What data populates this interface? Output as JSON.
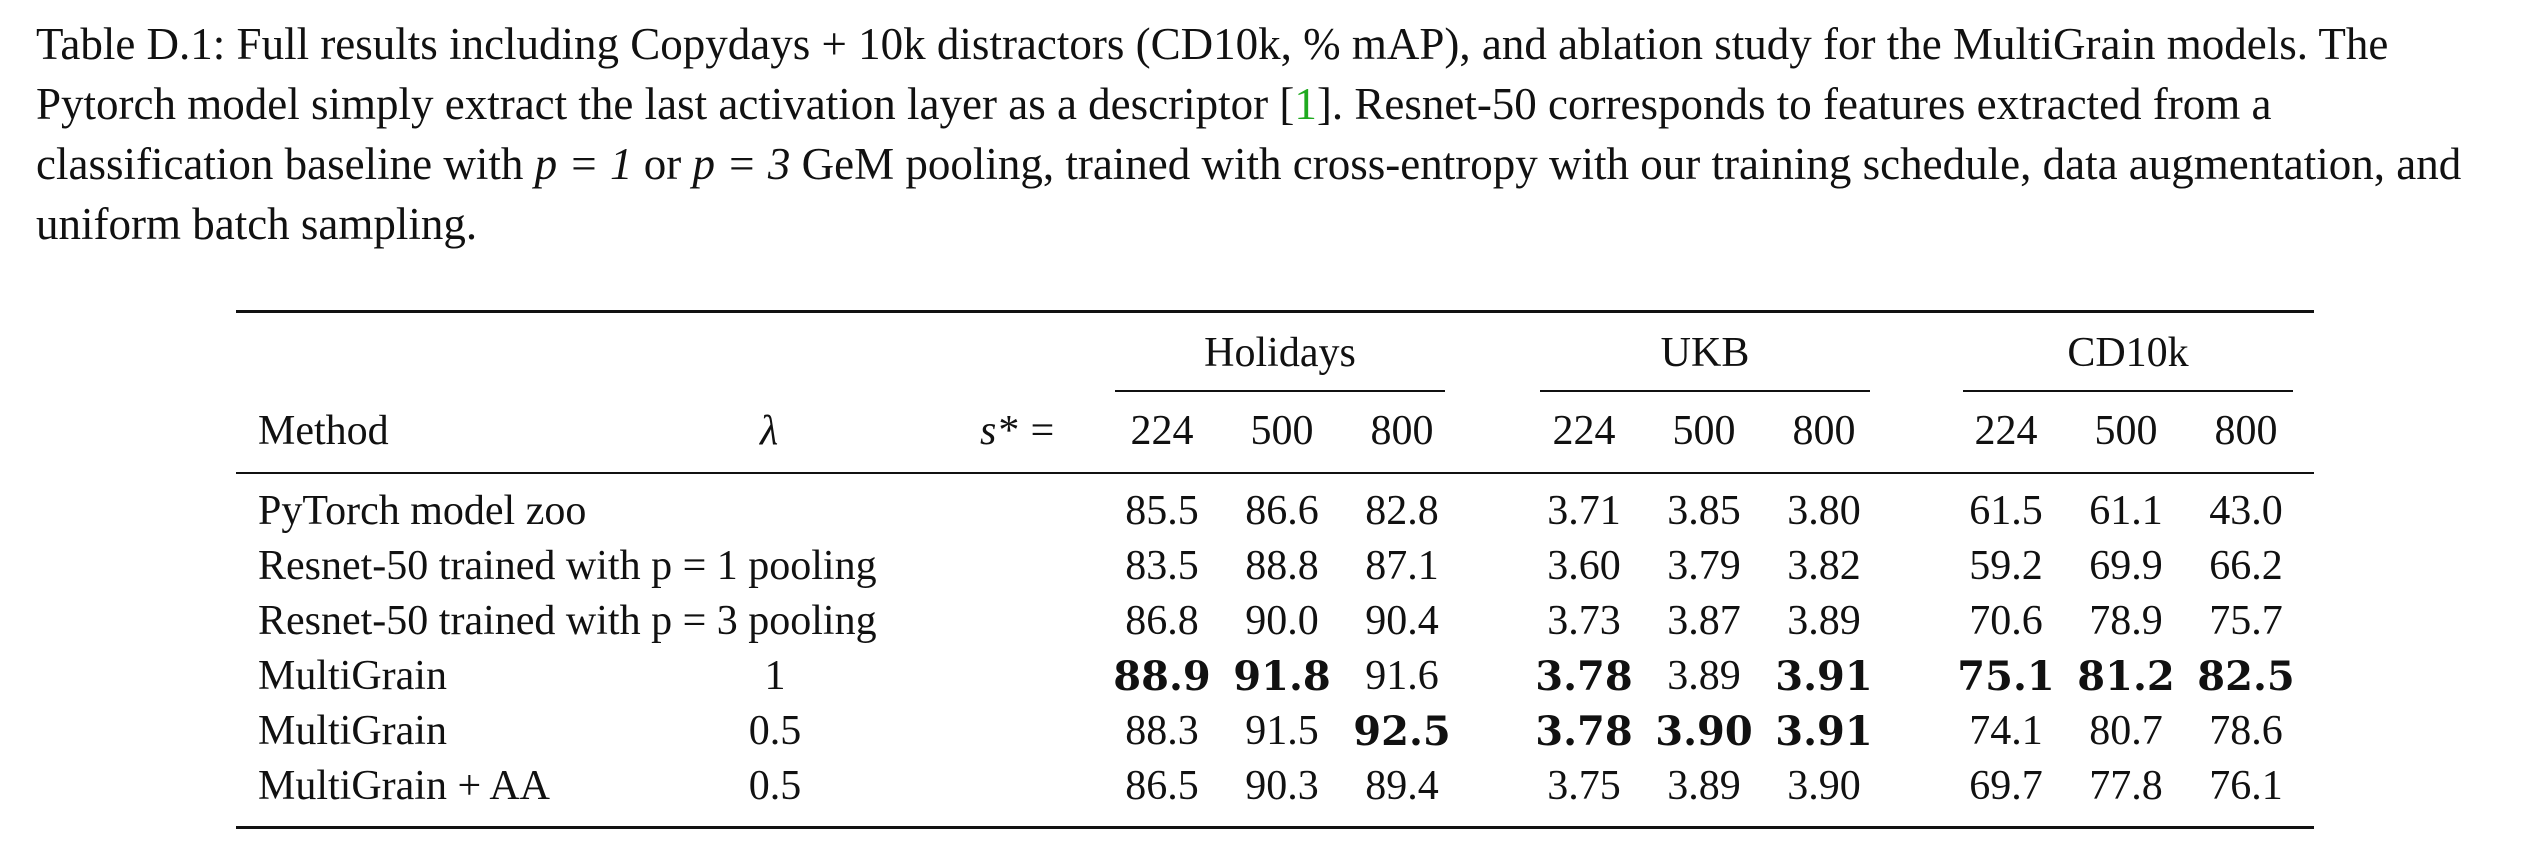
{
  "caption": {
    "part1": "Table D.1:  Full results including Copydays + 10k distractors (CD10k, % mAP), and ablation study for the MultiGrain models. The Pytorch model simply extract the last activation layer as a descriptor [",
    "ref": "1",
    "part2": "]. Resnet-50 corresponds to features extracted from a classification baseline with ",
    "p1": "p = 1",
    "or": " or ",
    "p3": "p = 3",
    "part3": " GeM pooling, trained with cross-entropy with our training schedule, data augmentation, and uniform batch sampling."
  },
  "table": {
    "groups": [
      "Holidays",
      "UKB",
      "CD10k"
    ],
    "method_header": "Method",
    "lambda_header": "λ",
    "s_header": "s* =",
    "sizes": [
      "224",
      "500",
      "800"
    ],
    "rows": [
      {
        "method": "PyTorch model zoo",
        "lambda": "",
        "values": [
          "85.5",
          "86.6",
          "82.8",
          "3.71",
          "3.85",
          "3.80",
          "61.5",
          "61.1",
          "43.0"
        ],
        "bold": [
          false,
          false,
          false,
          false,
          false,
          false,
          false,
          false,
          false
        ]
      },
      {
        "method": "Resnet-50 trained with p = 1 pooling",
        "lambda": "",
        "values": [
          "83.5",
          "88.8",
          "87.1",
          "3.60",
          "3.79",
          "3.82",
          "59.2",
          "69.9",
          "66.2"
        ],
        "bold": [
          false,
          false,
          false,
          false,
          false,
          false,
          false,
          false,
          false
        ]
      },
      {
        "method": "Resnet-50 trained with p = 3 pooling",
        "lambda": "",
        "values": [
          "86.8",
          "90.0",
          "90.4",
          "3.73",
          "3.87",
          "3.89",
          "70.6",
          "78.9",
          "75.7"
        ],
        "bold": [
          false,
          false,
          false,
          false,
          false,
          false,
          false,
          false,
          false
        ]
      },
      {
        "method": "MultiGrain",
        "lambda": "1",
        "values": [
          "88.9",
          "91.8",
          "91.6",
          "3.78",
          "3.89",
          "3.91",
          "75.1",
          "81.2",
          "82.5"
        ],
        "bold": [
          true,
          true,
          false,
          true,
          false,
          true,
          true,
          true,
          true
        ]
      },
      {
        "method": "MultiGrain",
        "lambda": "0.5",
        "values": [
          "88.3",
          "91.5",
          "92.5",
          "3.78",
          "3.90",
          "3.91",
          "74.1",
          "80.7",
          "78.6"
        ],
        "bold": [
          false,
          false,
          true,
          true,
          true,
          true,
          false,
          false,
          false
        ]
      },
      {
        "method": "MultiGrain + AA",
        "lambda": "0.5",
        "values": [
          "86.5",
          "90.3",
          "89.4",
          "3.75",
          "3.89",
          "3.90",
          "69.7",
          "77.8",
          "76.1"
        ],
        "bold": [
          false,
          false,
          false,
          false,
          false,
          false,
          false,
          false,
          false
        ]
      }
    ]
  }
}
